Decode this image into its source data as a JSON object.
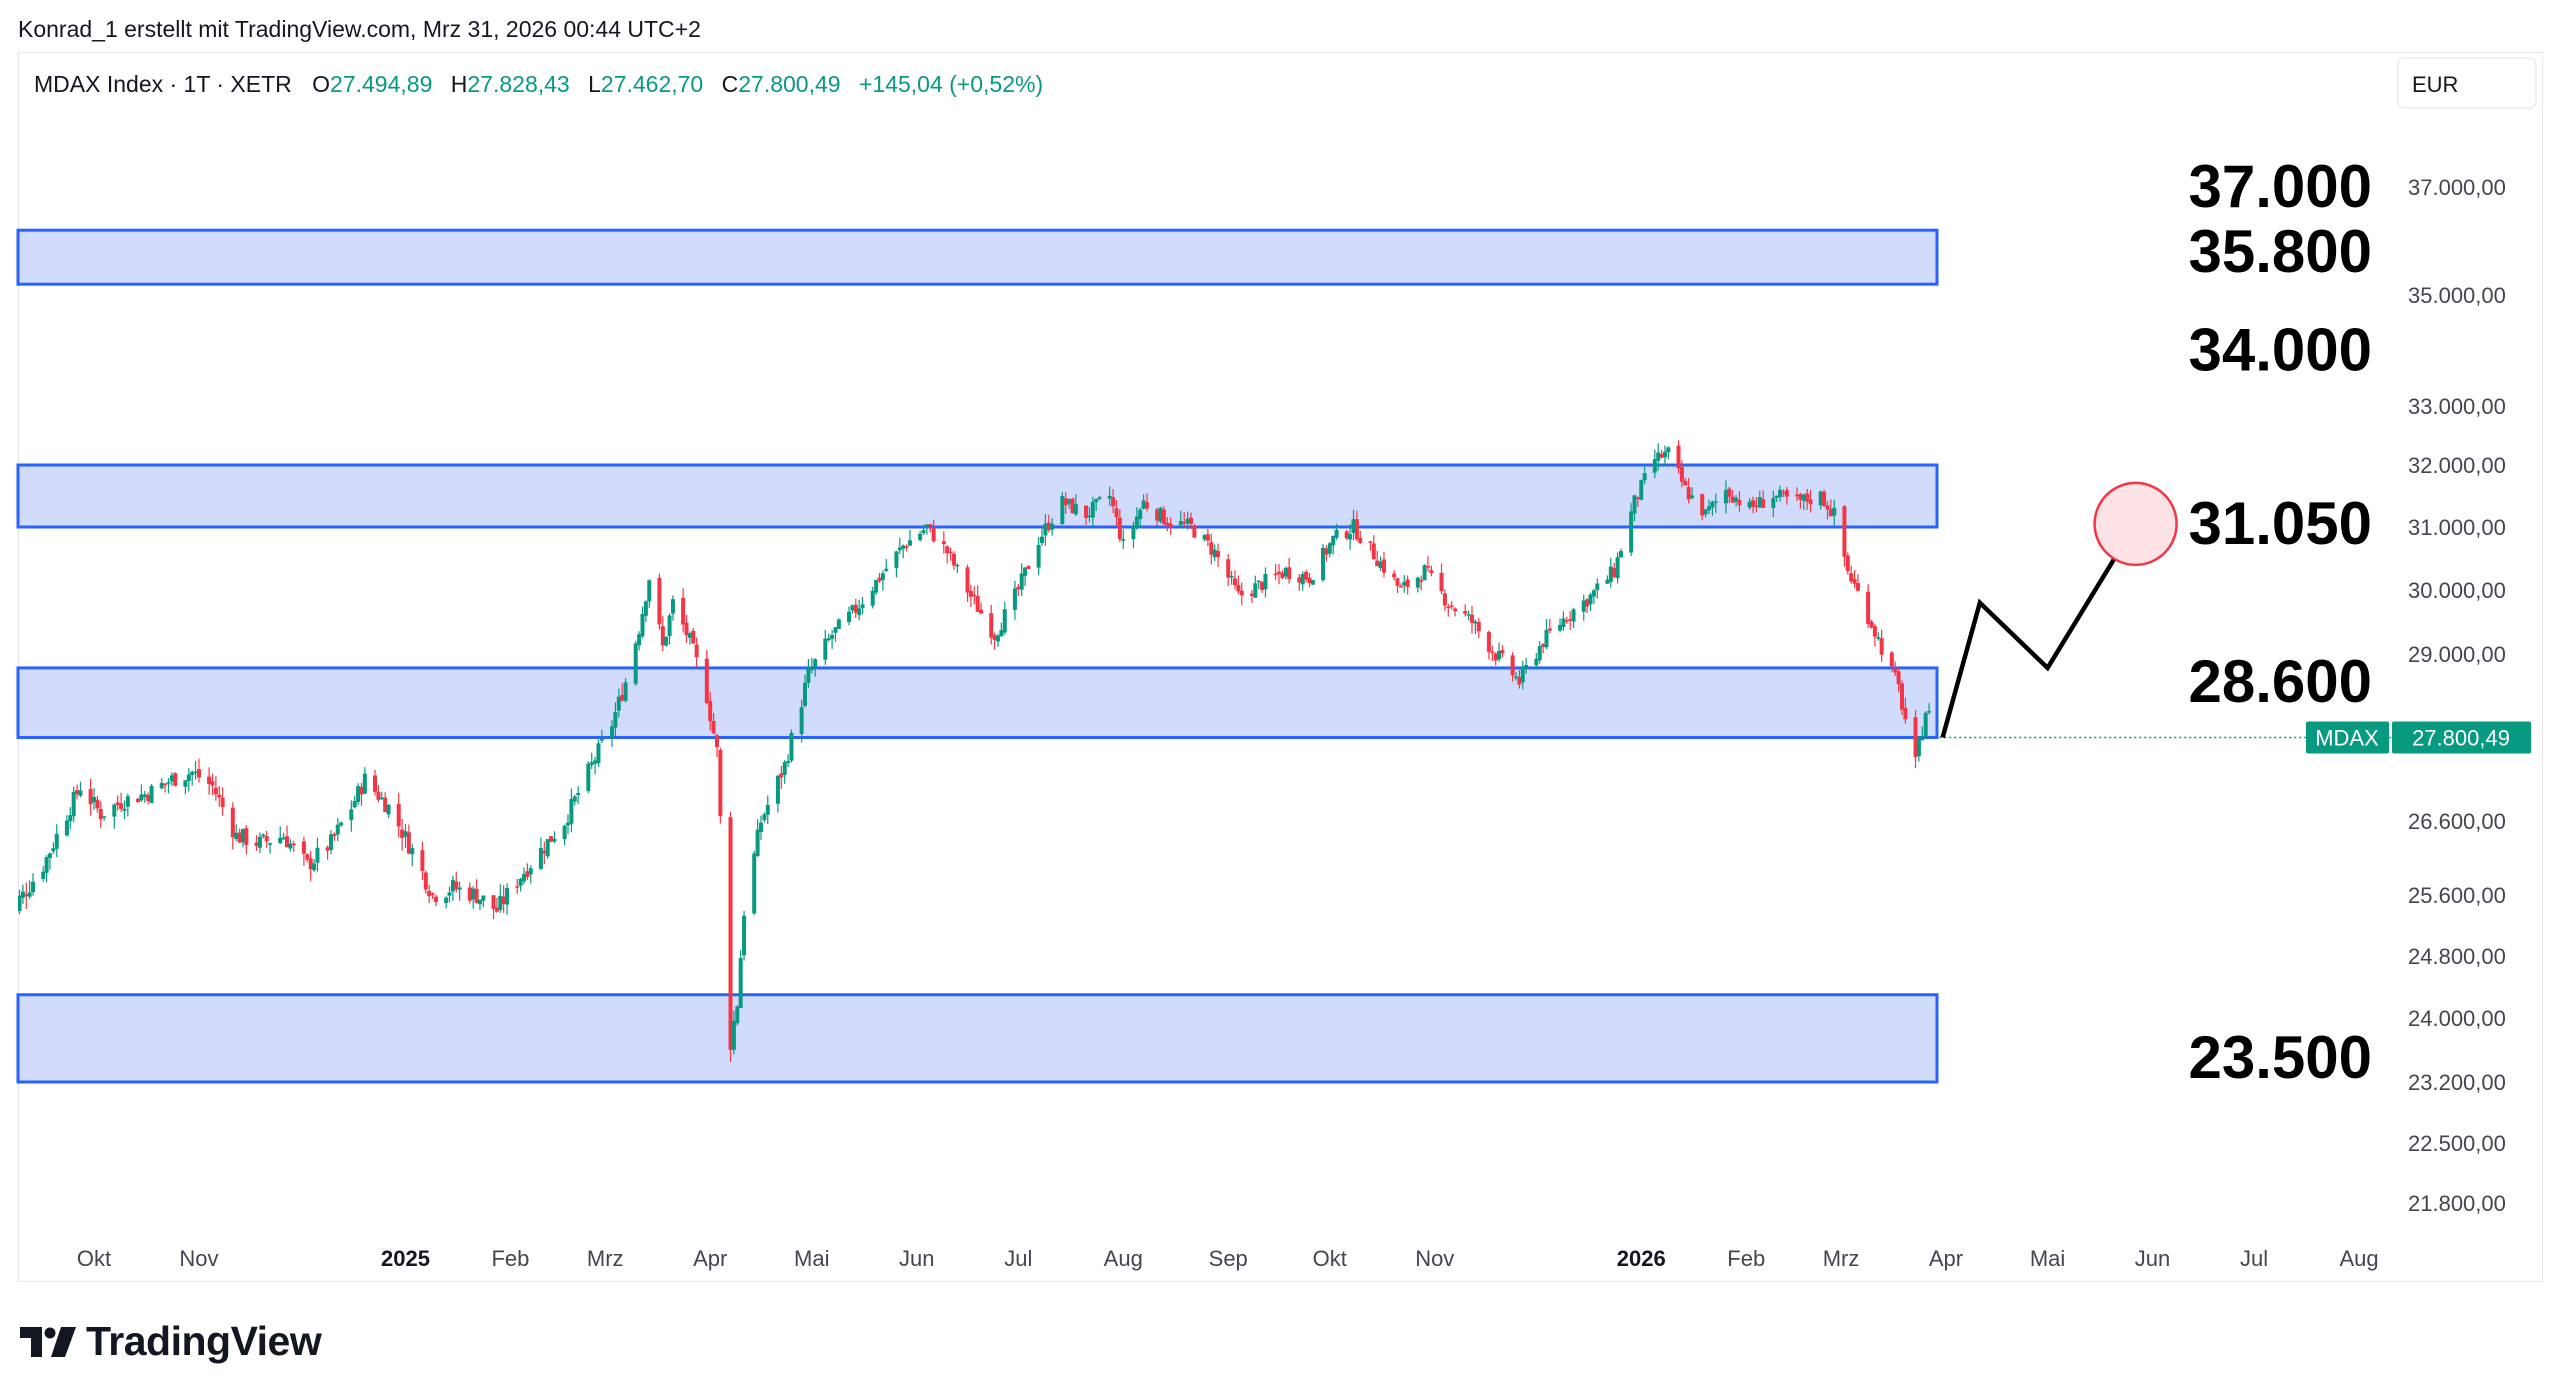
{
  "attribution": "Konrad_1 erstellt mit TradingView.com, Mrz 31, 2026 00:44 UTC+2",
  "legend": {
    "symbol": "MDAX Index · 1T · XETR",
    "open_label": "O",
    "open": "27.494,89",
    "high_label": "H",
    "high": "27.828,43",
    "low_label": "L",
    "low": "27.462,70",
    "close_label": "C",
    "close": "27.800,49",
    "change": "+145,04 (+0,52%)"
  },
  "currency": "EUR",
  "price_tag": {
    "label": "MDAX",
    "value": "27.800,49"
  },
  "branding": "TradingView",
  "colors": {
    "up": "#089981",
    "down": "#f23645",
    "zone_fill": "#d1dcfd",
    "zone_border": "#2962ff",
    "text": "#131722",
    "axis_text": "#434651",
    "circle_fill": "#fde3e6",
    "circle_stroke": "#f23645"
  },
  "chart_data": {
    "type": "candlestick",
    "instrument": "MDAX Index",
    "interval": "1T",
    "exchange": "XETR",
    "currency": "EUR",
    "ylim": [
      21400,
      38300
    ],
    "y_axis_ticks": [
      "37.000,00",
      "35.000,00",
      "33.000,00",
      "32.000,00",
      "31.000,00",
      "30.000,00",
      "29.000,00",
      "26.600,00",
      "25.600,00",
      "24.800,00",
      "24.000,00",
      "23.200,00",
      "22.500,00",
      "21.800,00"
    ],
    "y_axis_values": [
      37000,
      35000,
      33000,
      32000,
      31000,
      30000,
      29000,
      26600,
      25600,
      24800,
      24000,
      23200,
      22500,
      21800
    ],
    "x_axis_ticks": [
      {
        "label": "Okt",
        "date": "2024-10-01",
        "bold": false
      },
      {
        "label": "Nov",
        "date": "2024-11-01",
        "bold": false
      },
      {
        "label": "2025",
        "date": "2025-01-01",
        "bold": true
      },
      {
        "label": "Feb",
        "date": "2025-02-01",
        "bold": false
      },
      {
        "label": "Mrz",
        "date": "2025-03-01",
        "bold": false
      },
      {
        "label": "Apr",
        "date": "2025-04-01",
        "bold": false
      },
      {
        "label": "Mai",
        "date": "2025-05-01",
        "bold": false
      },
      {
        "label": "Jun",
        "date": "2025-06-01",
        "bold": false
      },
      {
        "label": "Jul",
        "date": "2025-07-01",
        "bold": false
      },
      {
        "label": "Aug",
        "date": "2025-08-01",
        "bold": false
      },
      {
        "label": "Sep",
        "date": "2025-09-01",
        "bold": false
      },
      {
        "label": "Okt",
        "date": "2025-10-01",
        "bold": false
      },
      {
        "label": "Nov",
        "date": "2025-11-01",
        "bold": false
      },
      {
        "label": "2026",
        "date": "2026-01-01",
        "bold": true
      },
      {
        "label": "Feb",
        "date": "2026-02-01",
        "bold": false
      },
      {
        "label": "Mrz",
        "date": "2026-03-01",
        "bold": false
      },
      {
        "label": "Apr",
        "date": "2026-04-01",
        "bold": false
      },
      {
        "label": "Mai",
        "date": "2026-05-01",
        "bold": false
      },
      {
        "label": "Jun",
        "date": "2026-06-01",
        "bold": false
      },
      {
        "label": "Jul",
        "date": "2026-07-01",
        "bold": false
      },
      {
        "label": "Aug",
        "date": "2026-08-01",
        "bold": false
      }
    ],
    "price_path": [
      [
        "2024-09-04",
        25300
      ],
      [
        "2024-09-10",
        25600
      ],
      [
        "2024-09-16",
        26000
      ],
      [
        "2024-09-20",
        26400
      ],
      [
        "2024-09-27",
        27100
      ],
      [
        "2024-10-03",
        26700
      ],
      [
        "2024-10-10",
        26900
      ],
      [
        "2024-10-17",
        27000
      ],
      [
        "2024-10-24",
        27200
      ],
      [
        "2024-10-30",
        27300
      ],
      [
        "2024-11-05",
        27100
      ],
      [
        "2024-11-12",
        26400
      ],
      [
        "2024-11-19",
        26300
      ],
      [
        "2024-11-26",
        26400
      ],
      [
        "2024-12-03",
        26000
      ],
      [
        "2024-12-10",
        26300
      ],
      [
        "2024-12-16",
        26800
      ],
      [
        "2024-12-20",
        27200
      ],
      [
        "2024-12-27",
        26800
      ],
      [
        "2025-01-03",
        26200
      ],
      [
        "2025-01-09",
        25600
      ],
      [
        "2025-01-15",
        25700
      ],
      [
        "2025-01-22",
        25600
      ],
      [
        "2025-01-28",
        25400
      ],
      [
        "2025-02-03",
        25800
      ],
      [
        "2025-02-10",
        26200
      ],
      [
        "2025-02-17",
        26600
      ],
      [
        "2025-02-24",
        27300
      ],
      [
        "2025-03-03",
        28000
      ],
      [
        "2025-03-07",
        28600
      ],
      [
        "2025-03-11",
        29400
      ],
      [
        "2025-03-14",
        30200
      ],
      [
        "2025-03-18",
        29100
      ],
      [
        "2025-03-21",
        29800
      ],
      [
        "2025-03-26",
        29200
      ],
      [
        "2025-03-31",
        28400
      ],
      [
        "2025-04-03",
        27600
      ],
      [
        "2025-04-07",
        23700
      ],
      [
        "2025-04-09",
        24200
      ],
      [
        "2025-04-11",
        25400
      ],
      [
        "2025-04-16",
        26600
      ],
      [
        "2025-04-23",
        27400
      ],
      [
        "2025-04-30",
        28700
      ],
      [
        "2025-05-07",
        29300
      ],
      [
        "2025-05-14",
        29700
      ],
      [
        "2025-05-21",
        30200
      ],
      [
        "2025-05-28",
        30700
      ],
      [
        "2025-06-04",
        31000
      ],
      [
        "2025-06-10",
        30600
      ],
      [
        "2025-06-17",
        29900
      ],
      [
        "2025-06-24",
        29300
      ],
      [
        "2025-07-01",
        30000
      ],
      [
        "2025-07-07",
        30800
      ],
      [
        "2025-07-14",
        31400
      ],
      [
        "2025-07-21",
        31200
      ],
      [
        "2025-07-28",
        31500
      ],
      [
        "2025-08-01",
        30700
      ],
      [
        "2025-08-07",
        31400
      ],
      [
        "2025-08-14",
        31100
      ],
      [
        "2025-08-21",
        31000
      ],
      [
        "2025-08-28",
        30600
      ],
      [
        "2025-09-04",
        29900
      ],
      [
        "2025-09-11",
        30100
      ],
      [
        "2025-09-18",
        30300
      ],
      [
        "2025-09-25",
        30200
      ],
      [
        "2025-10-02",
        30800
      ],
      [
        "2025-10-08",
        31000
      ],
      [
        "2025-10-15",
        30500
      ],
      [
        "2025-10-22",
        30000
      ],
      [
        "2025-10-29",
        30300
      ],
      [
        "2025-11-05",
        29800
      ],
      [
        "2025-11-12",
        29500
      ],
      [
        "2025-11-19",
        29000
      ],
      [
        "2025-11-26",
        28600
      ],
      [
        "2025-12-03",
        29200
      ],
      [
        "2025-12-10",
        29600
      ],
      [
        "2025-12-17",
        29900
      ],
      [
        "2025-12-24",
        30300
      ],
      [
        "2025-12-30",
        31400
      ],
      [
        "2026-01-05",
        32100
      ],
      [
        "2026-01-09",
        32200
      ],
      [
        "2026-01-14",
        31600
      ],
      [
        "2026-01-20",
        31200
      ],
      [
        "2026-01-26",
        31600
      ],
      [
        "2026-02-02",
        31300
      ],
      [
        "2026-02-09",
        31500
      ],
      [
        "2026-02-16",
        31400
      ],
      [
        "2026-02-23",
        31500
      ],
      [
        "2026-02-27",
        31200
      ],
      [
        "2026-03-03",
        30300
      ],
      [
        "2026-03-09",
        29600
      ],
      [
        "2026-03-13",
        29100
      ],
      [
        "2026-03-18",
        28500
      ],
      [
        "2026-03-23",
        27400
      ],
      [
        "2026-03-26",
        28200
      ],
      [
        "2026-03-30",
        27800
      ]
    ],
    "last_close": 27800.49,
    "key_levels": [
      37000,
      35800,
      34000,
      31050,
      28600,
      23500
    ],
    "key_level_labels": [
      "37.000",
      "35.800",
      "34.000",
      "31.050",
      "28.600",
      "23.500"
    ],
    "zones": [
      {
        "from": 35200,
        "to": 36200
      },
      {
        "from": 31000,
        "to": 32000
      },
      {
        "from": 27800,
        "to": 28800
      },
      {
        "from": 23200,
        "to": 24300
      }
    ],
    "projection": [
      [
        "2026-03-31",
        27800
      ],
      [
        "2026-04-11",
        29800
      ],
      [
        "2026-05-01",
        28800
      ],
      [
        "2026-05-27",
        31050
      ]
    ],
    "target_marker": {
      "date": "2026-05-27",
      "value": 31050
    }
  }
}
